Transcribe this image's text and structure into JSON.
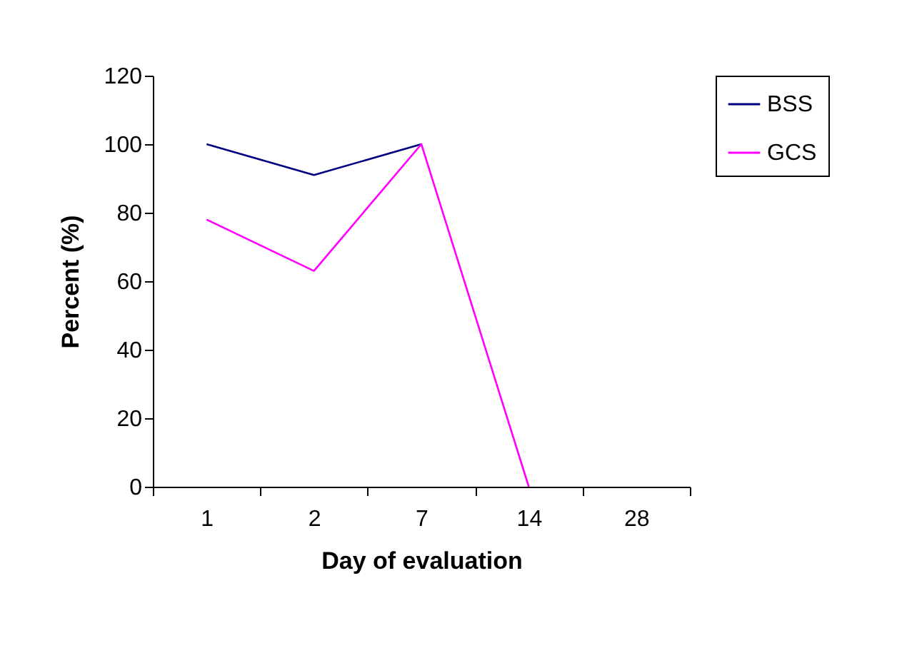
{
  "chart_data": {
    "type": "line",
    "xlabel": "Day of evaluation",
    "ylabel": "Percent (%)",
    "categories": [
      "1",
      "2",
      "7",
      "14",
      "28"
    ],
    "series": [
      {
        "name": "BSS",
        "color": "#000080",
        "values": [
          100,
          91,
          100,
          null,
          null
        ]
      },
      {
        "name": "GCS",
        "color": "#ff00ff",
        "values": [
          78,
          63,
          100,
          0,
          null
        ]
      }
    ],
    "ylim": [
      0,
      120
    ],
    "yticks": [
      0,
      20,
      40,
      60,
      80,
      100,
      120
    ],
    "grid": false,
    "legend": "right"
  }
}
